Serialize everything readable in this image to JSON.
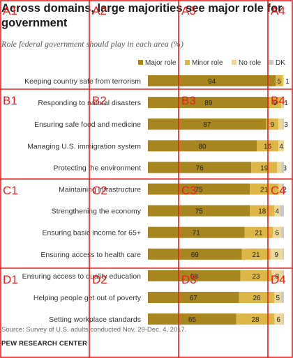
{
  "header": {
    "title": "Across domains, large majorities see major role for government",
    "subtitle": "Role federal government should play in each area (%)"
  },
  "footer": {
    "source": "Source: Survey of U.S. adults conducted Nov. 29-Dec. 4, 2017.",
    "org": "PEW RESEARCH CENTER"
  },
  "colors": {
    "major": "#a8861f",
    "minor": "#dcb647",
    "none": "#ecd89c",
    "dk": "#c9c9c9"
  },
  "chart_data": {
    "type": "bar",
    "orientation": "horizontal",
    "stacked": true,
    "categories": [
      "Keeping country safe from terrorism",
      "Responding to natural disasters",
      "Ensuring safe food and medicine",
      "Managing U.S. immigration system",
      "Protecting the environment",
      "Maintaining infrastructure",
      "Strengthening the economy",
      "Ensuring basic income for 65+",
      "Ensuring access to health care",
      "Ensuring access to quality education",
      "Helping people get out of poverty",
      "Setting workplace standards"
    ],
    "series": [
      {
        "name": "Major role",
        "values": [
          94,
          89,
          87,
          80,
          76,
          75,
          75,
          71,
          69,
          68,
          67,
          65
        ]
      },
      {
        "name": "Minor role",
        "values": [
          5,
          9,
          9,
          16,
          19,
          21,
          18,
          21,
          21,
          23,
          26,
          28
        ]
      },
      {
        "name": "No role",
        "values": [
          1,
          1,
          3,
          4,
          3,
          2,
          4,
          6,
          9,
          8,
          5,
          6
        ]
      },
      {
        "name": "DK",
        "values": [
          0,
          1,
          1,
          0,
          2,
          2,
          3,
          2,
          1,
          1,
          2,
          1
        ]
      }
    ],
    "shown_labels": {
      "Major role": [
        94,
        89,
        87,
        80,
        76,
        75,
        75,
        71,
        69,
        68,
        67,
        65
      ],
      "Minor role": [
        5,
        9,
        9,
        16,
        19,
        21,
        18,
        21,
        21,
        23,
        26,
        28
      ],
      "No role": [
        1,
        1,
        3,
        4,
        3,
        2,
        4,
        6,
        9,
        8,
        5,
        6
      ]
    },
    "xlim": [
      0,
      100
    ],
    "legend_position": "top"
  },
  "overlay_grid": {
    "labels": [
      "A1",
      "A2",
      "A3",
      "A4",
      "B1",
      "B2",
      "B3",
      "B4",
      "C1",
      "C2",
      "C3",
      "C4",
      "D1",
      "D2",
      "D3",
      "D4"
    ]
  }
}
